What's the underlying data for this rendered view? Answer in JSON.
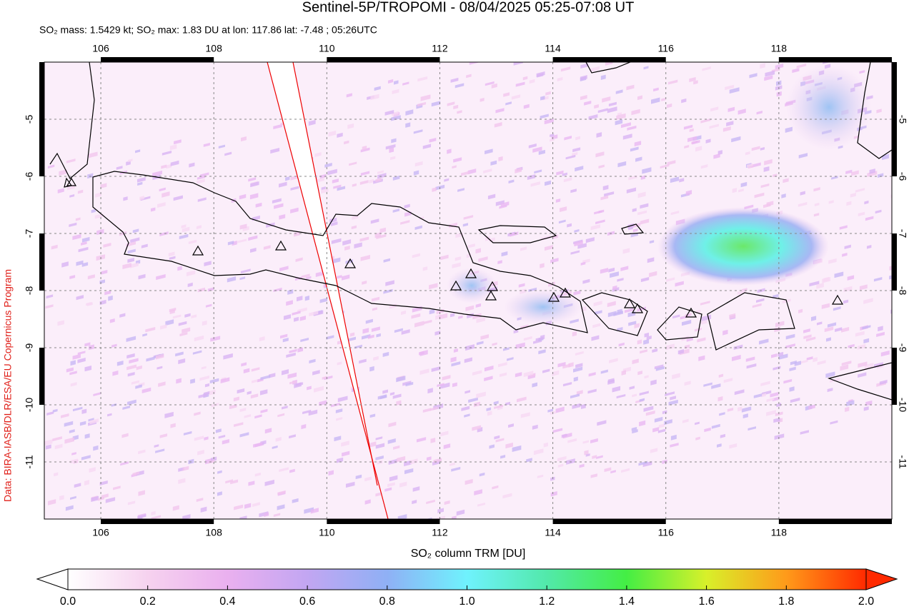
{
  "title": "Sentinel-5P/TROPOMI - 08/04/2025 05:25-07:08 UT",
  "subtitle": "SO₂ mass: 1.5429 kt; SO₂ max: 1.83 DU at lon: 117.86 lat: -7.48 ; 05:26UTC",
  "credit": "Data: BIRA-IASB/DLR/ESA/EU Copernicus Program",
  "map": {
    "xlim": [
      105,
      120
    ],
    "ylim": [
      -12,
      -4
    ],
    "xticks": [
      106,
      108,
      110,
      112,
      114,
      116,
      118
    ],
    "yticks": [
      -5,
      -6,
      -7,
      -8,
      -9,
      -10,
      -11
    ]
  },
  "colorbar": {
    "label": "SO₂ column TRM [DU]",
    "clim": [
      0,
      2
    ],
    "ticks": [
      {
        "value": 0,
        "label": "0.0"
      },
      {
        "value": 0.2,
        "label": "0.2"
      },
      {
        "value": 0.4,
        "label": "0.4"
      },
      {
        "value": 0.6,
        "label": "0.6"
      },
      {
        "value": 0.8,
        "label": "0.8"
      },
      {
        "value": 1,
        "label": "1.0"
      },
      {
        "value": 1.2,
        "label": "1.2"
      },
      {
        "value": 1.4,
        "label": "1.4"
      },
      {
        "value": 1.6,
        "label": "1.6"
      },
      {
        "value": 1.8,
        "label": "1.8"
      },
      {
        "value": 2,
        "label": "2.0"
      }
    ]
  }
}
